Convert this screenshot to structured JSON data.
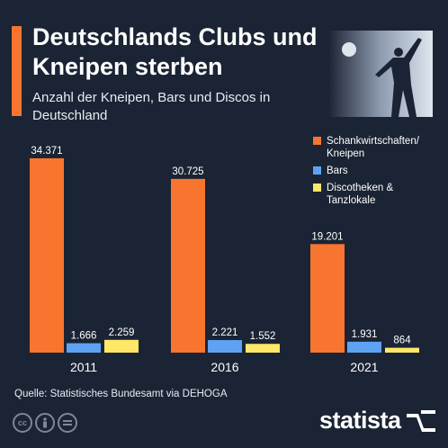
{
  "header": {
    "title": "Deutschlands Clubs und Kneipen sterben",
    "subtitle": "Anzahl der Kneipen, Bars und Discos in Deutschland"
  },
  "colors": {
    "background": "#1b2434",
    "accent": "#f7752e",
    "series_1": "#f7752e",
    "series_2": "#5ea3f3",
    "series_3": "#ffe868"
  },
  "chart_data": {
    "type": "bar",
    "categories": [
      "2011",
      "2016",
      "2021"
    ],
    "series": [
      {
        "name": "Schankwirtschaften/ Kneipen",
        "values": [
          34371,
          30725,
          19201
        ],
        "labels": [
          "34.371",
          "30.725",
          "19.201"
        ]
      },
      {
        "name": "Bars",
        "values": [
          1666,
          2221,
          1931
        ],
        "labels": [
          "1.666",
          "2.221",
          "1.931"
        ]
      },
      {
        "name": "Discotheken & Tanzlokale",
        "values": [
          2259,
          1552,
          864
        ],
        "labels": [
          "2.259",
          "1.552",
          "864"
        ]
      }
    ],
    "title": "",
    "xlabel": "",
    "ylabel": "",
    "ylim": [
      0,
      35000
    ],
    "grid": false,
    "legend": "top-right"
  },
  "footer": {
    "source": "Quelle: Statistisches Bundesamt via DEHOGA",
    "brand": "statista",
    "license_icons": [
      "cc-icon",
      "by-person-icon",
      "nd-equals-icon"
    ]
  }
}
